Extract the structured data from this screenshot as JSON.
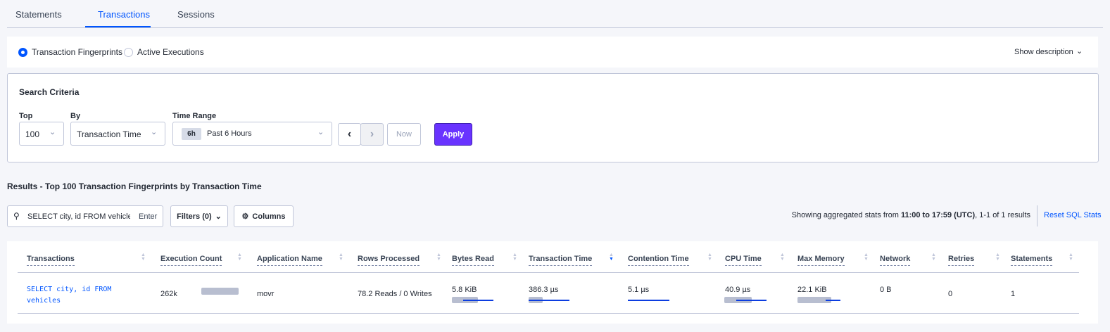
{
  "tabs": [
    {
      "label": "Statements"
    },
    {
      "label": "Transactions",
      "active": true
    },
    {
      "label": "Sessions"
    }
  ],
  "view": {
    "options": [
      "Transaction Fingerprints",
      "Active Executions"
    ],
    "selected": "Transaction Fingerprints",
    "show_description": "Show description"
  },
  "search": {
    "title": "Search Criteria",
    "top_label": "Top",
    "top_value": "100",
    "by_label": "By",
    "by_value": "Transaction Time",
    "time_label": "Time Range",
    "time_badge": "6h",
    "time_value": "Past 6 Hours",
    "now": "Now",
    "apply": "Apply"
  },
  "results": {
    "title": "Results - Top 100 Transaction Fingerprints by Transaction Time",
    "search_value": "SELECT city, id FROM vehicles W",
    "enter": "Enter",
    "filters": "Filters (0)",
    "columns": "Columns",
    "stats_prefix": "Showing aggregated stats from ",
    "stats_range": "11:00 to 17:59 (UTC)",
    "stats_suffix": ", 1-1 of 1 results",
    "reset": "Reset SQL Stats"
  },
  "table": {
    "headers": [
      "Transactions",
      "Execution Count",
      "Application Name",
      "Rows Processed",
      "Bytes Read",
      "Transaction Time",
      "Contention Time",
      "CPU Time",
      "Max Memory",
      "Network",
      "Retries",
      "Statements"
    ],
    "sorted_by": "Transaction Time",
    "rows": [
      {
        "transaction": "SELECT city, id FROM vehicles",
        "execution_count": "262k",
        "app": "movr",
        "rows": "78.2 Reads / 0 Writes",
        "bytes_read": "5.8 KiB",
        "tx_time": "386.3 µs",
        "contention": "5.1 µs",
        "cpu": "40.9 µs",
        "max_memory": "22.1 KiB",
        "network": "0 B",
        "retries": "0",
        "statements": "1"
      }
    ]
  },
  "colors": {
    "accent": "#0055ff",
    "apply": "#6933ff",
    "bar": "#b8bed0",
    "line": "#0c3de0"
  }
}
